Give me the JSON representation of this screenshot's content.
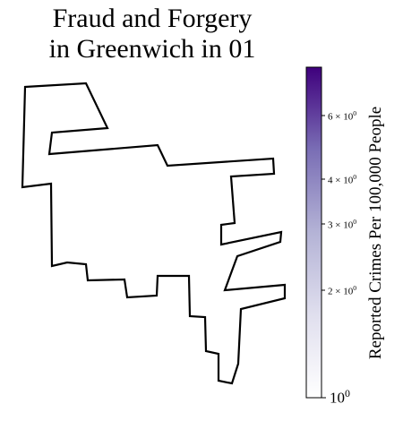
{
  "title": {
    "line1": "Fraud and Forgery",
    "line2": "in Greenwich in 01"
  },
  "map": {
    "region": "Greenwich",
    "outline_color": "#000000",
    "fill_color": "#ffffff"
  },
  "colorbar": {
    "label": "Reported Crimes Per 100,000 People",
    "scale": "log",
    "range": [
      1,
      8
    ],
    "colormap": "Purples",
    "color_low": "#ffffff",
    "color_high": "#3f007d",
    "ticks": [
      {
        "base": "6",
        "exp": "0",
        "text": "6 × 10"
      },
      {
        "base": "4",
        "exp": "0",
        "text": "4 × 10"
      },
      {
        "base": "3",
        "exp": "0",
        "text": "3 × 10"
      },
      {
        "base": "2",
        "exp": "0",
        "text": "2 × 10"
      },
      {
        "base": "10",
        "exp": "0",
        "text": "10"
      }
    ]
  }
}
